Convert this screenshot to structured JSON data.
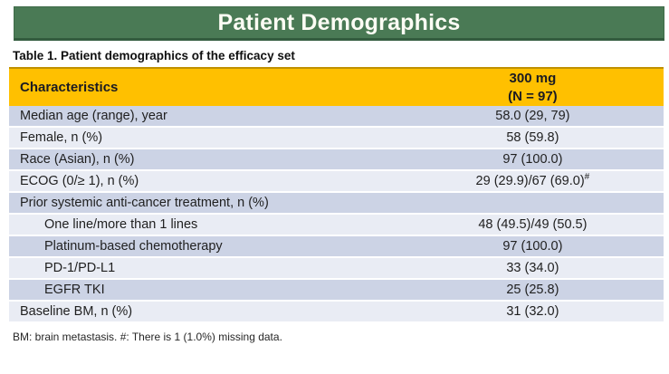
{
  "banner": {
    "title": "Patient Demographics"
  },
  "caption": "Table 1. Patient demographics of the efficacy set",
  "table": {
    "header": {
      "characteristics": "Characteristics",
      "dose_column": "300 mg\n(N = 97)"
    },
    "rows": [
      {
        "label": "Median age (range), year",
        "value": "58.0 (29, 79)"
      },
      {
        "label": "Female, n (%)",
        "value": "58 (59.8)"
      },
      {
        "label": "Race (Asian), n (%)",
        "value": "97 (100.0)"
      },
      {
        "label": "ECOG (0/≥ 1), n (%)",
        "value": "29 (29.9)/67 (69.0)",
        "sup": "#"
      },
      {
        "label": "Prior systemic anti-cancer treatment, n (%)",
        "value": ""
      },
      {
        "label": "One line/more than 1 lines",
        "value": "48 (49.5)/49 (50.5)"
      },
      {
        "label": "Platinum-based chemotherapy",
        "value": "97 (100.0)"
      },
      {
        "label": "PD-1/PD-L1",
        "value": "33 (34.0)"
      },
      {
        "label": "EGFR TKI",
        "value": "25 (25.8)"
      },
      {
        "label": "Baseline BM, n (%)",
        "value": "31 (32.0)"
      }
    ]
  },
  "footnote": "BM: brain metastasis. #: There is 1 (1.0%) missing data.",
  "colors": {
    "banner_green": "#4a7a55",
    "header_yellow": "#ffc000",
    "row_dark": "#ccd3e5",
    "row_light": "#e9ecf4"
  }
}
